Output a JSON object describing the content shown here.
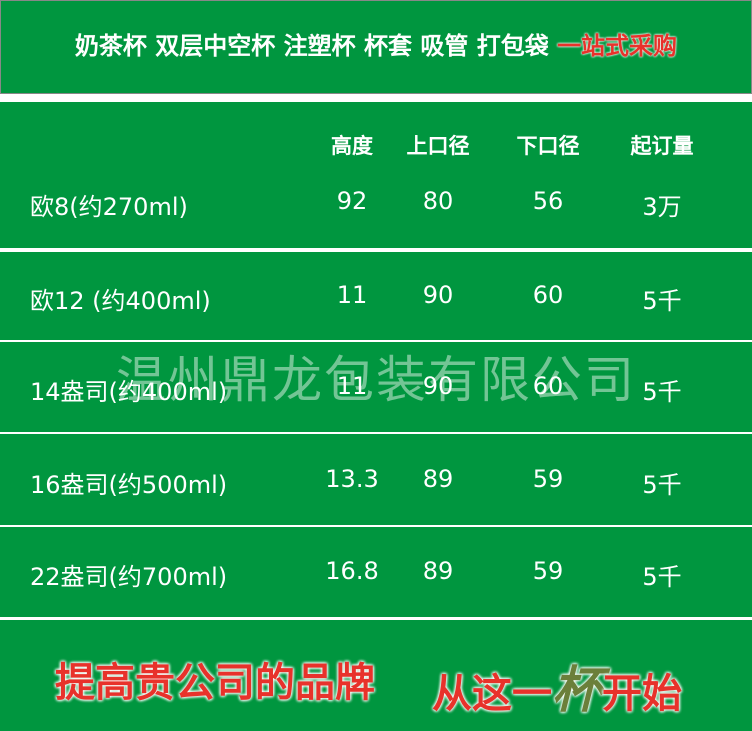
{
  "banner": {
    "products": "奶茶杯 双层中空杯 注塑杯 杯套 吸管 打包袋",
    "highlight": "一站式采购"
  },
  "table": {
    "headers": [
      "高度",
      "上口径",
      "下口径",
      "起订量"
    ],
    "rows": [
      {
        "name": "欧8(约270ml)",
        "height": "92",
        "top": "80",
        "bottom": "56",
        "moq": "3万"
      },
      {
        "name": "欧12 (约400ml)",
        "height": "11",
        "top": "90",
        "bottom": "60",
        "moq": "5千"
      },
      {
        "name": "14盎司(约400ml)",
        "height": "11",
        "top": "90",
        "bottom": "60",
        "moq": "5千"
      },
      {
        "name": "16盎司(约500ml)",
        "height": "13.3",
        "top": "89",
        "bottom": "59",
        "moq": "5千"
      },
      {
        "name": "22盎司(约700ml)",
        "height": "16.8",
        "top": "89",
        "bottom": "59",
        "moq": "5千"
      }
    ]
  },
  "watermark": "温州鼎龙包装有限公司",
  "footer": {
    "slogan1": "提高贵公司的品牌",
    "slogan2a": "从这一",
    "slogan2b": "杯",
    "slogan2c": "开始"
  },
  "colors": {
    "green": "#00963f",
    "red": "#e8322b",
    "olive": "#6b7f3a"
  }
}
